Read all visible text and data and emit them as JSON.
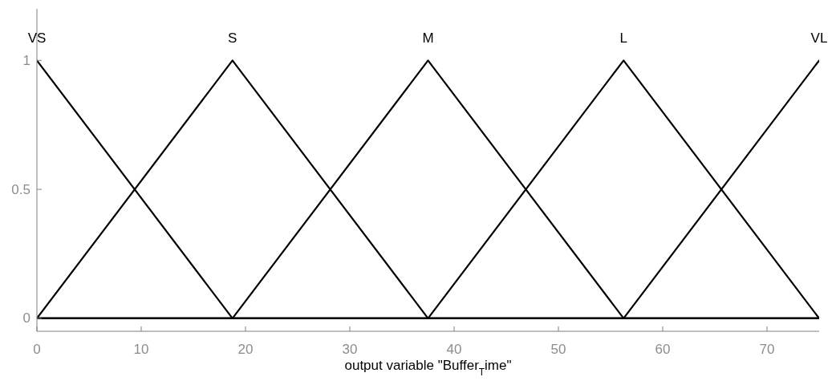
{
  "chart_data": {
    "type": "line",
    "xlabel": "output variable \"Buffer$_{T}$ime\"",
    "x": [
      0,
      18.75,
      37.5,
      56.25,
      75
    ],
    "series": [
      {
        "name": "VS",
        "color": "#000000",
        "values": [
          1,
          0,
          0,
          0,
          0
        ]
      },
      {
        "name": "S",
        "color": "#000000",
        "values": [
          0,
          1,
          0,
          0,
          0
        ]
      },
      {
        "name": "M",
        "color": "#000000",
        "values": [
          0,
          0,
          1,
          0,
          0
        ]
      },
      {
        "name": "L",
        "color": "#000000",
        "values": [
          0,
          0,
          0,
          1,
          0
        ]
      },
      {
        "name": "VL",
        "color": "#000000",
        "values": [
          0,
          0,
          0,
          0,
          1
        ]
      }
    ],
    "xlim": [
      0,
      75
    ],
    "ylim": [
      -0.05,
      1.2
    ],
    "xticks": [
      0,
      10,
      20,
      30,
      40,
      50,
      60,
      70
    ],
    "yticks": [
      0,
      0.5,
      1
    ],
    "marker": "none",
    "line_style": "solid"
  }
}
